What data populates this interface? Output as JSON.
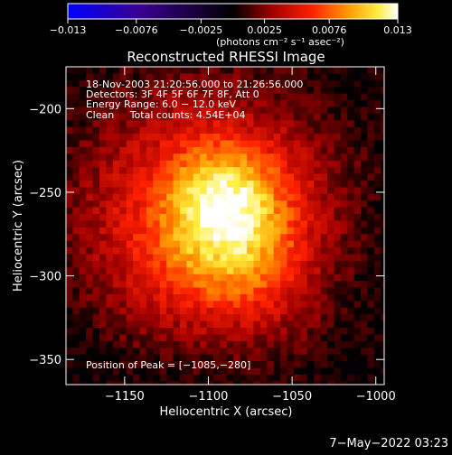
{
  "chart_data": {
    "type": "heatmap",
    "title": "Reconstructed RHESSI Image",
    "xlabel": "Heliocentric X (arcsec)",
    "ylabel": "Heliocentric Y (arcsec)",
    "xlim": [
      -1185,
      -995
    ],
    "ylim": [
      -365,
      -175
    ],
    "x_ticks": [
      {
        "value": -1150,
        "label": "−1150"
      },
      {
        "value": -1100,
        "label": "−1100"
      },
      {
        "value": -1050,
        "label": "−1050"
      },
      {
        "value": -1000,
        "label": "−1000"
      }
    ],
    "y_ticks": [
      {
        "value": -200,
        "label": "−200"
      },
      {
        "value": -250,
        "label": "−250"
      },
      {
        "value": -300,
        "label": "−300"
      },
      {
        "value": -350,
        "label": "−350"
      }
    ],
    "colorbar": {
      "range": [
        -0.013,
        0.013
      ],
      "tick_values": [
        -0.013,
        -0.0076,
        -0.0025,
        0.0025,
        0.0076,
        0.013
      ],
      "tick_labels": [
        "−0.013",
        "−0.0076",
        "−0.0025",
        "0.0025",
        "0.0076",
        "0.013"
      ],
      "units_label": "(photons cm⁻² s⁻¹ asec⁻²)",
      "colors": [
        "#0000ff",
        "#3a0090",
        "#000000",
        "#a00000",
        "#ff2000",
        "#ff9a00",
        "#ffee40",
        "#ffffff"
      ]
    },
    "annotations": [
      "18-Nov-2003 21:20:56.000 to 21:26:56.000",
      "Detectors: 3F 4F 5F 6F 7F 8F, Att 0",
      "Energy Range: 6.0 − 12.0 keV",
      "Clean     Total counts: 4.54E+04"
    ],
    "peak_label": "Position of Peak = [−1085,−280]",
    "peak": {
      "x": -1085,
      "y": -280,
      "value": 0.013
    },
    "sources": [
      {
        "x": -1085,
        "y": -280,
        "sigma": 30,
        "amp": 0.0068
      },
      {
        "x": -1092,
        "y": -250,
        "sigma": 20,
        "amp": 0.0038
      },
      {
        "x": -1108,
        "y": -232,
        "sigma": 42,
        "amp": 0.0034
      },
      {
        "x": -1145,
        "y": -268,
        "sigma": 38,
        "amp": 0.0024
      },
      {
        "x": -1058,
        "y": -248,
        "sigma": 38,
        "amp": 0.0024
      },
      {
        "x": -1128,
        "y": -310,
        "sigma": 30,
        "amp": 0.0019
      },
      {
        "x": -1062,
        "y": -318,
        "sigma": 30,
        "amp": 0.0018
      }
    ]
  },
  "footer": {
    "timestamp": "7−May−2022 03:23"
  }
}
